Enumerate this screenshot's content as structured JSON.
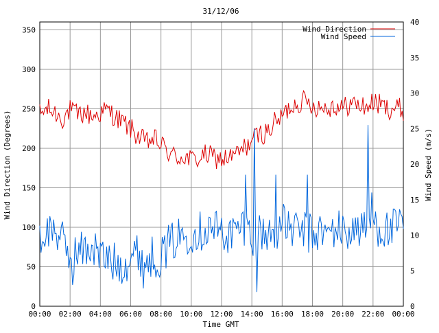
{
  "chart_data": {
    "type": "line",
    "title": "31/12/06",
    "xlabel": "Time GMT",
    "ylabel_left": "Wind Direction (Degrees)",
    "ylabel_right": "Wind Speed (m/s)",
    "x_ticks": [
      "00:00",
      "02:00",
      "04:00",
      "06:00",
      "08:00",
      "10:00",
      "12:00",
      "14:00",
      "16:00",
      "18:00",
      "20:00",
      "22:00",
      "00:00"
    ],
    "x_range_hours": [
      0,
      24
    ],
    "y_left_ticks": [
      "0",
      "50",
      "100",
      "150",
      "200",
      "250",
      "300",
      "350"
    ],
    "y_left_range": [
      0,
      360
    ],
    "y_right_ticks": [
      "0",
      "5",
      "10",
      "15",
      "20",
      "25",
      "30",
      "35",
      "40"
    ],
    "y_right_range": [
      0,
      40
    ],
    "grid": true,
    "legend_position": "top-right",
    "sample_interval_minutes": 5,
    "series": [
      {
        "name": "Wind Direction",
        "axis": "left",
        "color": "#dd0000",
        "x_hours": [
          0,
          0.5,
          1,
          1.5,
          2,
          2.5,
          3,
          3.5,
          4,
          4.5,
          5,
          5.5,
          6,
          6.5,
          7,
          7.5,
          8,
          8.5,
          9,
          9.5,
          10,
          10.5,
          11,
          11.5,
          12,
          12.5,
          13,
          13.5,
          14,
          14.5,
          15,
          15.5,
          16,
          16.5,
          17,
          17.5,
          18,
          18.5,
          19,
          19.5,
          20,
          20.5,
          21,
          21.5,
          22,
          22.5,
          23,
          23.5,
          24
        ],
        "values": [
          243,
          250,
          245,
          238,
          248,
          242,
          245,
          240,
          245,
          248,
          240,
          232,
          225,
          215,
          207,
          212,
          205,
          195,
          188,
          190,
          185,
          187,
          192,
          188,
          186,
          188,
          192,
          200,
          210,
          218,
          220,
          232,
          240,
          252,
          258,
          260,
          255,
          252,
          252,
          255,
          250,
          257,
          255,
          252,
          258,
          255,
          250,
          252,
          248
        ]
      },
      {
        "name": "Wind Speed",
        "axis": "right",
        "color": "#0066dd",
        "x_hours": [
          0,
          0.5,
          1,
          1.5,
          2,
          2.5,
          3,
          3.5,
          4,
          4.5,
          5,
          5.5,
          6,
          6.5,
          7,
          7.5,
          8,
          8.5,
          9,
          9.5,
          10,
          10.5,
          11,
          11.5,
          12,
          12.5,
          13,
          13.5,
          14,
          14.5,
          15,
          15.5,
          16,
          16.5,
          17,
          17.5,
          18,
          18.5,
          19,
          19.5,
          20,
          20.5,
          21,
          21.5,
          22,
          22.5,
          23,
          23.5,
          24
        ],
        "values": [
          9,
          10.5,
          11,
          9,
          7,
          7.5,
          8,
          8.5,
          7,
          6.5,
          6,
          6,
          7,
          7.5,
          6.5,
          7,
          7,
          8.5,
          9.5,
          10,
          10.5,
          10.5,
          11,
          11,
          10.5,
          10,
          10.5,
          11.5,
          10,
          10.5,
          10,
          10.5,
          11.5,
          11,
          10.5,
          10.5,
          10,
          10.5,
          10,
          11,
          10.5,
          10.5,
          11,
          10.5,
          12,
          11,
          10.5,
          11,
          11
        ],
        "spikes": [
          {
            "x_hours": 13.6,
            "value": 18.5
          },
          {
            "x_hours": 14.15,
            "value": 25
          },
          {
            "x_hours": 14.3,
            "value": 2
          },
          {
            "x_hours": 15.6,
            "value": 18.5
          },
          {
            "x_hours": 17.7,
            "value": 18.5
          },
          {
            "x_hours": 21.7,
            "value": 25.5
          },
          {
            "x_hours": 21.95,
            "value": 16
          },
          {
            "x_hours": 2.2,
            "value": 3
          },
          {
            "x_hours": 6.8,
            "value": 2.5
          }
        ]
      }
    ]
  }
}
